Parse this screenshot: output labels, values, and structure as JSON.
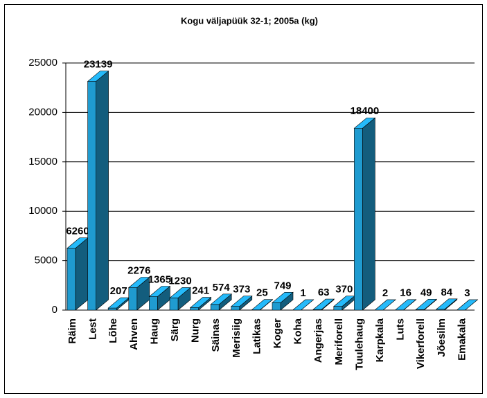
{
  "chart_data": {
    "type": "bar3d",
    "title": "Kogu väljapüük 32-1; 2005a (kg)",
    "categories": [
      "Räim",
      "Lest",
      "Lõhe",
      "Ahven",
      "Haug",
      "Särg",
      "Nurg",
      "Säinas",
      "Merisiig",
      "Latikas",
      "Koger",
      "Koha",
      "Angerjas",
      "Meriforell",
      "Tuulehaug",
      "Karpkala",
      "Luts",
      "Vikerforell",
      "Jõesilm",
      "Emakala"
    ],
    "values": [
      6260,
      23139,
      207,
      2276,
      1365,
      1230,
      241,
      574,
      373,
      25,
      749,
      1,
      63,
      370,
      18400,
      2,
      16,
      49,
      84,
      3
    ],
    "color": "#1f9bd0",
    "ylim": [
      0,
      25000
    ],
    "yticks": [
      0,
      5000,
      10000,
      15000,
      20000,
      25000
    ],
    "grid": true
  }
}
